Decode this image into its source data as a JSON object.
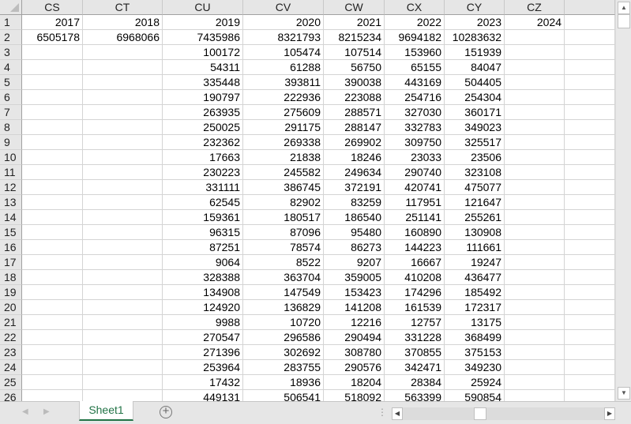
{
  "columns": [
    "CS",
    "CT",
    "CU",
    "CV",
    "CW",
    "CX",
    "CY",
    "CZ",
    ""
  ],
  "rows": [
    {
      "n": "1",
      "v": [
        "2017",
        "2018",
        "2019",
        "2020",
        "2021",
        "2022",
        "2023",
        "2024",
        ""
      ]
    },
    {
      "n": "2",
      "v": [
        "6505178",
        "6968066",
        "7435986",
        "8321793",
        "8215234",
        "9694182",
        "10283632",
        "",
        ""
      ]
    },
    {
      "n": "3",
      "v": [
        "",
        "",
        "100172",
        "105474",
        "107514",
        "153960",
        "151939",
        "",
        ""
      ]
    },
    {
      "n": "4",
      "v": [
        "",
        "",
        "54311",
        "61288",
        "56750",
        "65155",
        "84047",
        "",
        ""
      ]
    },
    {
      "n": "5",
      "v": [
        "",
        "",
        "335448",
        "393811",
        "390038",
        "443169",
        "504405",
        "",
        ""
      ]
    },
    {
      "n": "6",
      "v": [
        "",
        "",
        "190797",
        "222936",
        "223088",
        "254716",
        "254304",
        "",
        ""
      ]
    },
    {
      "n": "7",
      "v": [
        "",
        "",
        "263935",
        "275609",
        "288571",
        "327030",
        "360171",
        "",
        ""
      ]
    },
    {
      "n": "8",
      "v": [
        "",
        "",
        "250025",
        "291175",
        "288147",
        "332783",
        "349023",
        "",
        ""
      ]
    },
    {
      "n": "9",
      "v": [
        "",
        "",
        "232362",
        "269338",
        "269902",
        "309750",
        "325517",
        "",
        ""
      ]
    },
    {
      "n": "10",
      "v": [
        "",
        "",
        "17663",
        "21838",
        "18246",
        "23033",
        "23506",
        "",
        ""
      ]
    },
    {
      "n": "11",
      "v": [
        "",
        "",
        "230223",
        "245582",
        "249634",
        "290740",
        "323108",
        "",
        ""
      ]
    },
    {
      "n": "12",
      "v": [
        "",
        "",
        "331111",
        "386745",
        "372191",
        "420741",
        "475077",
        "",
        ""
      ]
    },
    {
      "n": "13",
      "v": [
        "",
        "",
        "62545",
        "82902",
        "83259",
        "117951",
        "121647",
        "",
        ""
      ]
    },
    {
      "n": "14",
      "v": [
        "",
        "",
        "159361",
        "180517",
        "186540",
        "251141",
        "255261",
        "",
        ""
      ]
    },
    {
      "n": "15",
      "v": [
        "",
        "",
        "96315",
        "87096",
        "95480",
        "160890",
        "130908",
        "",
        ""
      ]
    },
    {
      "n": "16",
      "v": [
        "",
        "",
        "87251",
        "78574",
        "86273",
        "144223",
        "111661",
        "",
        ""
      ]
    },
    {
      "n": "17",
      "v": [
        "",
        "",
        "9064",
        "8522",
        "9207",
        "16667",
        "19247",
        "",
        ""
      ]
    },
    {
      "n": "18",
      "v": [
        "",
        "",
        "328388",
        "363704",
        "359005",
        "410208",
        "436477",
        "",
        ""
      ]
    },
    {
      "n": "19",
      "v": [
        "",
        "",
        "134908",
        "147549",
        "153423",
        "174296",
        "185492",
        "",
        ""
      ]
    },
    {
      "n": "20",
      "v": [
        "",
        "",
        "124920",
        "136829",
        "141208",
        "161539",
        "172317",
        "",
        ""
      ]
    },
    {
      "n": "21",
      "v": [
        "",
        "",
        "9988",
        "10720",
        "12216",
        "12757",
        "13175",
        "",
        ""
      ]
    },
    {
      "n": "22",
      "v": [
        "",
        "",
        "270547",
        "296586",
        "290494",
        "331228",
        "368499",
        "",
        ""
      ]
    },
    {
      "n": "23",
      "v": [
        "",
        "",
        "271396",
        "302692",
        "308780",
        "370855",
        "375153",
        "",
        ""
      ]
    },
    {
      "n": "24",
      "v": [
        "",
        "",
        "253964",
        "283755",
        "290576",
        "342471",
        "349230",
        "",
        ""
      ]
    },
    {
      "n": "25",
      "v": [
        "",
        "",
        "17432",
        "18936",
        "18204",
        "28384",
        "25924",
        "",
        ""
      ]
    },
    {
      "n": "26",
      "v": [
        "",
        "",
        "449131",
        "506541",
        "518092",
        "563399",
        "590854",
        "",
        ""
      ]
    }
  ],
  "sheet_tabs": [
    {
      "label": "Sheet1",
      "active": true
    }
  ],
  "icons": {
    "add_sheet": "plus-circle-icon",
    "scroll_up": "triangle-up-icon",
    "scroll_down": "triangle-down-icon",
    "scroll_left": "triangle-left-icon",
    "scroll_right": "triangle-right-icon"
  },
  "colors": {
    "active_tab": "#217346",
    "header_bg": "#e6e6e6",
    "gridline": "#d4d4d4"
  }
}
